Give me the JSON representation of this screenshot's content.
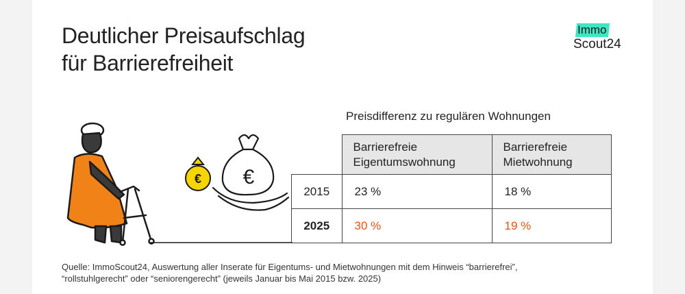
{
  "title": {
    "line1": "Deutlicher Preisaufschlag",
    "line2": "für Barrierefreiheit"
  },
  "logo": {
    "line1": "Immo",
    "line2": "Scout24"
  },
  "table": {
    "caption": "Preisdifferenz zu regulären Wohnungen",
    "columns": [
      {
        "line1": "Barrierefreie",
        "line2": "Eigentumswohnung"
      },
      {
        "line1": "Barrierefreie",
        "line2": "Mietwohnung"
      }
    ],
    "rows": [
      {
        "year": "2015",
        "values": [
          "23 %",
          "18 %"
        ]
      },
      {
        "year": "2025",
        "values": [
          "30 %",
          "19 %"
        ]
      }
    ]
  },
  "illustration": {
    "coin_symbol": "€",
    "bag_symbol": "€"
  },
  "colors": {
    "accent": "#e8520f",
    "logo_highlight": "#3ee6c2",
    "coin": "#f5d400",
    "header_bg": "#e6e6e6"
  },
  "source": {
    "line1": "Quelle: ImmoScout24, Auswertung aller Inserate für Eigentums- und Mietwohnungen mit dem Hinweis “barrierefrei”,",
    "line2": "“rollstuhlgerecht” oder “seniorengerecht” (jeweils Januar bis Mai 2015 bzw. 2025)"
  }
}
